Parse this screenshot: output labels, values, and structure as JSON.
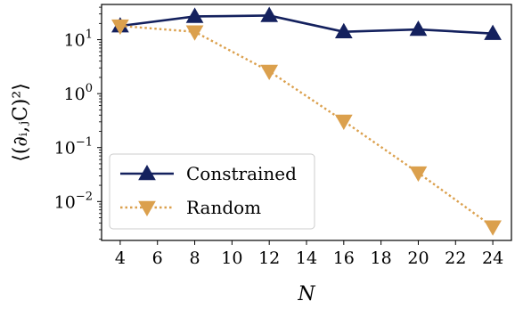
{
  "chart_data": {
    "type": "line",
    "x": [
      4,
      8,
      12,
      16,
      20,
      24
    ],
    "xlabel": "N",
    "ylabel": "⟨(∂ᵢ,ⱼC)²⟩",
    "yscale": "log",
    "xlim": [
      3,
      25
    ],
    "ylim": [
      0.0019,
      45
    ],
    "xticks": [
      "4",
      "6",
      "8",
      "10",
      "12",
      "14",
      "16",
      "18",
      "20",
      "22",
      "24"
    ],
    "yticks": [
      {
        "base": "10",
        "exp": "1",
        "value": 10
      },
      {
        "base": "10",
        "exp": "0",
        "value": 1
      },
      {
        "base": "10",
        "exp": "−1",
        "value": 0.1
      },
      {
        "base": "10",
        "exp": "−2",
        "value": 0.01
      }
    ],
    "grid": false,
    "legend_position": "bottom-left",
    "series": [
      {
        "name": "Constrained",
        "values": [
          18.0,
          27.0,
          28.0,
          14.0,
          15.5,
          13.0
        ],
        "color": "#14215e",
        "linestyle": "solid",
        "marker": "triangle-up"
      },
      {
        "name": "Random",
        "values": [
          18.0,
          14.0,
          2.6,
          0.31,
          0.034,
          0.0034
        ],
        "color": "#dba04d",
        "linestyle": "dotted",
        "marker": "triangle-down"
      }
    ]
  }
}
